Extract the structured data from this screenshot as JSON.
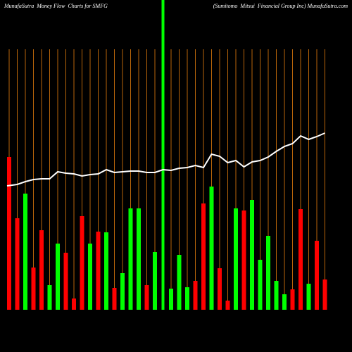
{
  "chart_data": {
    "type": "bar",
    "title": "MunafaSutra  Money Flow  Charts for SMFG",
    "subtitle": "(Sumitomo  Mitsui  Financial Group Inc) MunafaSutra.com",
    "ylim": [
      0,
      440
    ],
    "background": "#000000",
    "guide_color": "#b8650a",
    "series": [
      {
        "name": "money-flow",
        "type": "bar",
        "colors": [
          "#ff0000",
          "#ff0000",
          "#00ff00",
          "#ff0000",
          "#ff0000",
          "#00ff00",
          "#00ff00",
          "#ff0000",
          "#ff0000",
          "#ff0000",
          "#00ff00",
          "#ff0000",
          "#00ff00",
          "#ff0000",
          "#00ff00",
          "#00ff00",
          "#00ff00",
          "#ff0000",
          "#00ff00",
          "#00ff00",
          "#00ff00",
          "#00ff00",
          "#00ff00",
          "#ff0000",
          "#ff0000",
          "#00ff00",
          "#ff0000",
          "#ff0000",
          "#00ff00",
          "#ff0000",
          "#00ff00",
          "#00ff00",
          "#00ff00",
          "#00ff00",
          "#00ff00",
          "#ff0000",
          "#ff0000",
          "#00ff00",
          "#ff0000",
          "#ff0000"
        ],
        "values": [
          217,
          130,
          165,
          60,
          113,
          35,
          94,
          81,
          16,
          133,
          94,
          111,
          110,
          31,
          52,
          144,
          144,
          35,
          82,
          440,
          30,
          78,
          32,
          41,
          151,
          175,
          59,
          13,
          144,
          141,
          156,
          71,
          105,
          41,
          22,
          29,
          143,
          37,
          98,
          43
        ]
      },
      {
        "name": "price",
        "type": "line",
        "color": "#ffffff",
        "values": [
          176,
          178,
          182,
          185,
          186,
          186,
          196,
          194,
          193,
          190,
          192,
          193,
          199,
          195,
          196,
          197,
          197,
          195,
          195,
          199,
          198,
          201,
          202,
          205,
          202,
          221,
          218,
          209,
          212,
          203,
          210,
          212,
          217,
          225,
          232,
          236,
          247,
          242,
          246,
          251
        ]
      }
    ]
  }
}
